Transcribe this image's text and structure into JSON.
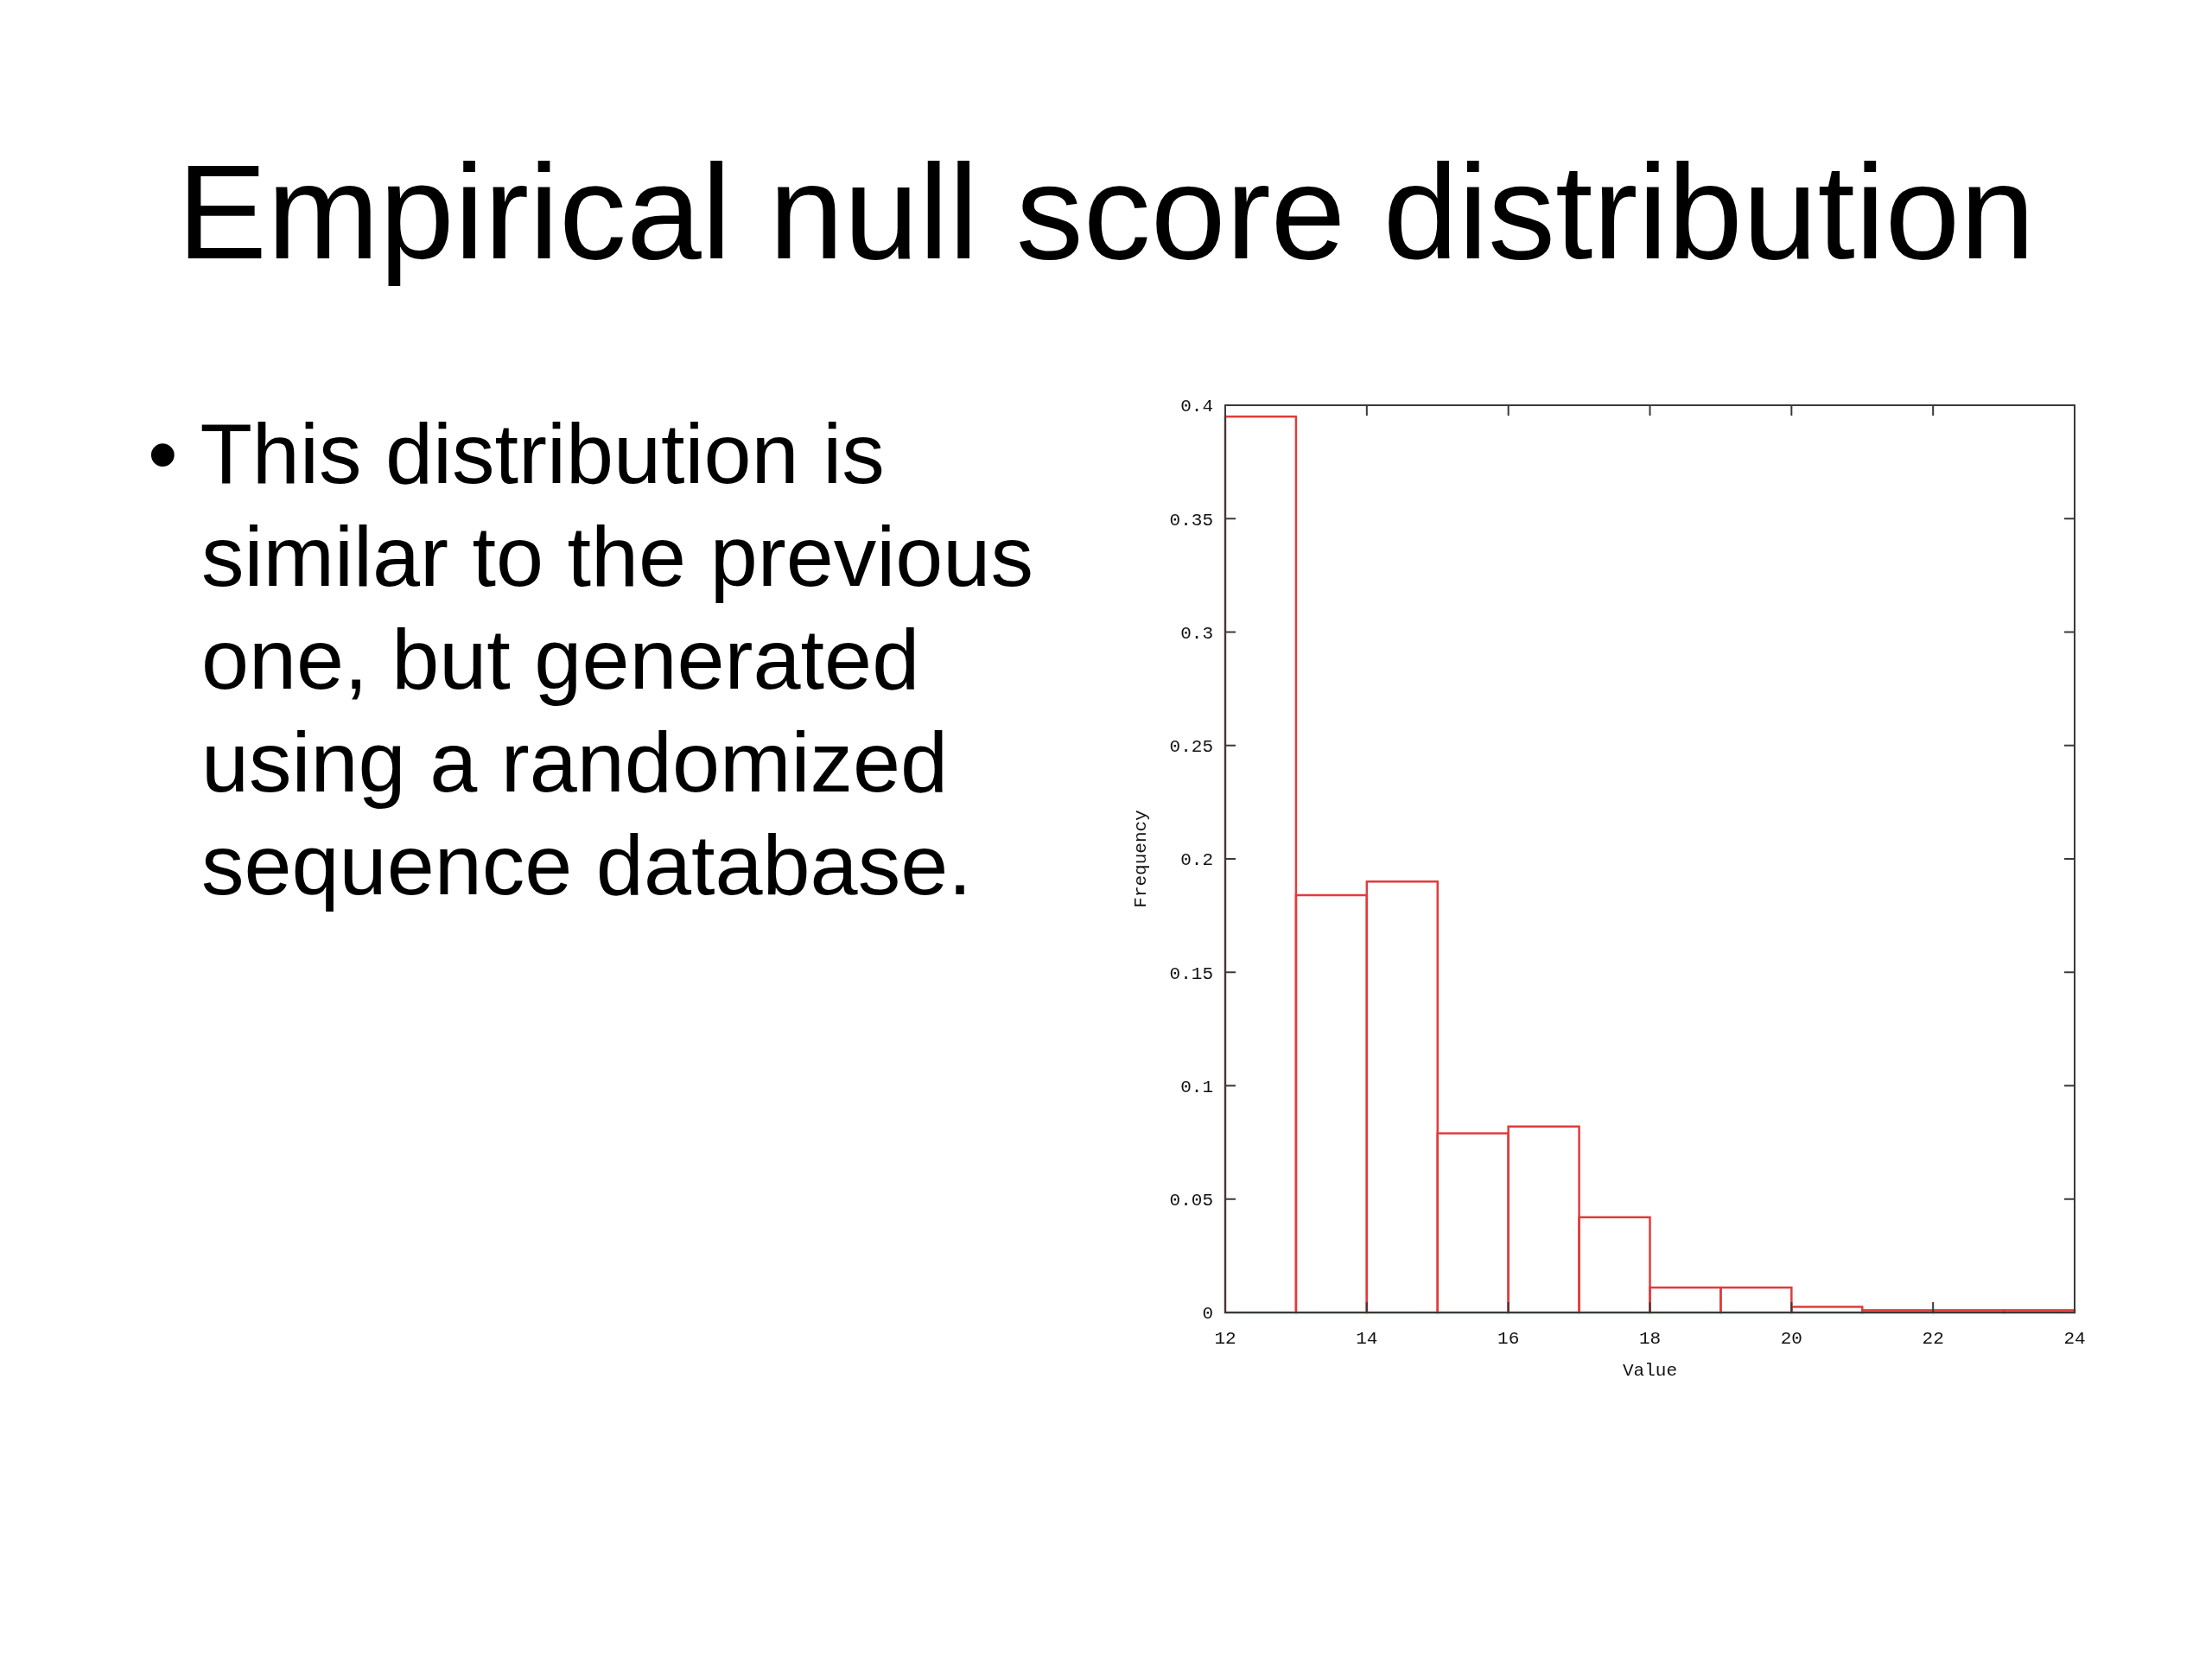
{
  "chart_data": {
    "type": "histogram",
    "title": "Empirical null score distribution",
    "xlabel": "Value",
    "ylabel": "Frequency",
    "bins": [
      12,
      13,
      14,
      15,
      16,
      17,
      18,
      19,
      20,
      21,
      22,
      23,
      24
    ],
    "values": [
      0.395,
      0.184,
      0.19,
      0.079,
      0.082,
      0.042,
      0.011,
      0.011,
      0.0025,
      0.001,
      0.001,
      0.001
    ],
    "color": "#e03c3c",
    "xlim": [
      12,
      24
    ],
    "ylim": [
      0,
      0.4
    ],
    "xticks": [
      12,
      14,
      16,
      18,
      20,
      22,
      24
    ],
    "yticks": [
      0,
      0.05,
      0.1,
      0.15,
      0.2,
      0.25,
      0.3,
      0.35,
      0.4
    ],
    "annotations": [
      "• This distribution is similar to the previous one, but generated using a randomized sequence database."
    ]
  }
}
